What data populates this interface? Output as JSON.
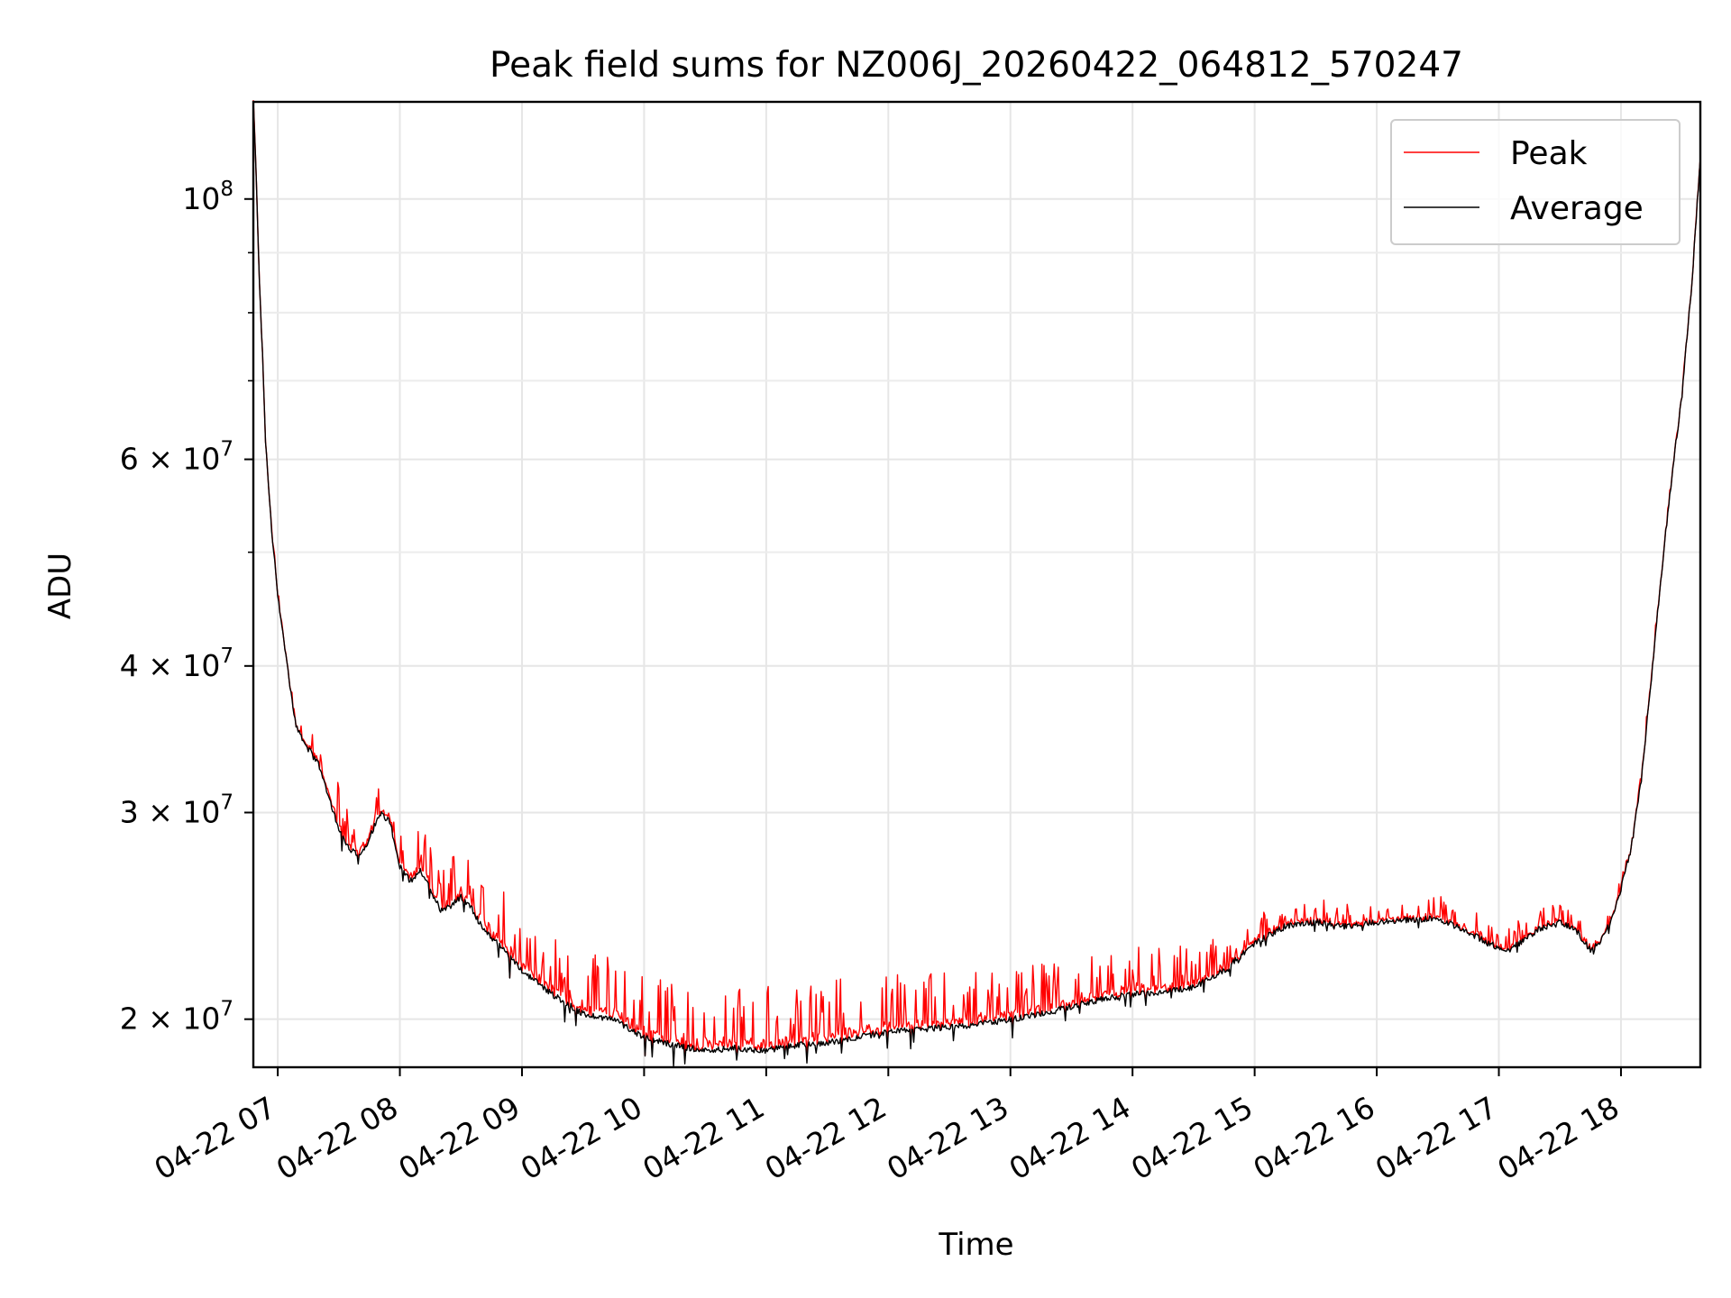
{
  "chart_data": {
    "type": "line",
    "title": "Peak field sums for NZ006J_20260422_064812_570247",
    "xlabel": "Time",
    "ylabel": "ADU",
    "y_scale": "log",
    "ylim": [
      18200000,
      121000000
    ],
    "xlim": [
      "2026-04-22 06:48",
      "2026-04-22 18:39"
    ],
    "grid": true,
    "legend_position": "top-right",
    "x_tick_labels": [
      "04-22 07",
      "04-22 08",
      "04-22 09",
      "04-22 10",
      "04-22 11",
      "04-22 12",
      "04-22 13",
      "04-22 14",
      "04-22 15",
      "04-22 16",
      "04-22 17",
      "04-22 18"
    ],
    "x_tick_times": [
      "2026-04-22 07:00",
      "2026-04-22 08:00",
      "2026-04-22 09:00",
      "2026-04-22 10:00",
      "2026-04-22 11:00",
      "2026-04-22 12:00",
      "2026-04-22 13:00",
      "2026-04-22 14:00",
      "2026-04-22 15:00",
      "2026-04-22 16:00",
      "2026-04-22 17:00",
      "2026-04-22 18:00"
    ],
    "y_ticks_major": [
      {
        "value": 20000000,
        "label": "2 × 10",
        "exp": "7"
      },
      {
        "value": 30000000,
        "label": "3 × 10",
        "exp": "7"
      },
      {
        "value": 40000000,
        "label": "4 × 10",
        "exp": "7"
      },
      {
        "value": 60000000,
        "label": "6 × 10",
        "exp": "7"
      },
      {
        "value": 100000000,
        "label": "10",
        "exp": "8"
      }
    ],
    "y_ticks_minor": [
      50000000,
      70000000,
      80000000,
      90000000
    ],
    "series": [
      {
        "name": "Peak",
        "color": "#ff0000"
      },
      {
        "name": "Average",
        "color": "#000000"
      }
    ],
    "average_points": [
      [
        "2026-04-22 06:48",
        121000000
      ],
      [
        "2026-04-22 06:51",
        85000000
      ],
      [
        "2026-04-22 06:54",
        62000000
      ],
      [
        "2026-04-22 06:57",
        52000000
      ],
      [
        "2026-04-22 07:00",
        46000000
      ],
      [
        "2026-04-22 07:03",
        42000000
      ],
      [
        "2026-04-22 07:06",
        38500000
      ],
      [
        "2026-04-22 07:09",
        35500000
      ],
      [
        "2026-04-22 07:15",
        34000000
      ],
      [
        "2026-04-22 07:20",
        33000000
      ],
      [
        "2026-04-22 07:25",
        31000000
      ],
      [
        "2026-04-22 07:30",
        29000000
      ],
      [
        "2026-04-22 07:35",
        28000000
      ],
      [
        "2026-04-22 07:40",
        27500000
      ],
      [
        "2026-04-22 07:45",
        28500000
      ],
      [
        "2026-04-22 07:50",
        30000000
      ],
      [
        "2026-04-22 07:55",
        29500000
      ],
      [
        "2026-04-22 08:00",
        27000000
      ],
      [
        "2026-04-22 08:05",
        26200000
      ],
      [
        "2026-04-22 08:10",
        26800000
      ],
      [
        "2026-04-22 08:15",
        25800000
      ],
      [
        "2026-04-22 08:20",
        24800000
      ],
      [
        "2026-04-22 08:25",
        25000000
      ],
      [
        "2026-04-22 08:30",
        25400000
      ],
      [
        "2026-04-22 08:35",
        24900000
      ],
      [
        "2026-04-22 08:40",
        24000000
      ],
      [
        "2026-04-22 08:50",
        23000000
      ],
      [
        "2026-04-22 09:00",
        22000000
      ],
      [
        "2026-04-22 09:15",
        21000000
      ],
      [
        "2026-04-22 09:30",
        20200000
      ],
      [
        "2026-04-22 09:45",
        20000000
      ],
      [
        "2026-04-22 10:00",
        19300000
      ],
      [
        "2026-04-22 10:15",
        19000000
      ],
      [
        "2026-04-22 10:30",
        18800000
      ],
      [
        "2026-04-22 10:45",
        18900000
      ],
      [
        "2026-04-22 11:00",
        18800000
      ],
      [
        "2026-04-22 11:15",
        19000000
      ],
      [
        "2026-04-22 11:30",
        19100000
      ],
      [
        "2026-04-22 11:45",
        19300000
      ],
      [
        "2026-04-22 12:00",
        19500000
      ],
      [
        "2026-04-22 12:15",
        19600000
      ],
      [
        "2026-04-22 12:30",
        19700000
      ],
      [
        "2026-04-22 12:45",
        19800000
      ],
      [
        "2026-04-22 13:00",
        20000000
      ],
      [
        "2026-04-22 13:15",
        20200000
      ],
      [
        "2026-04-22 13:30",
        20500000
      ],
      [
        "2026-04-22 13:45",
        20800000
      ],
      [
        "2026-04-22 14:00",
        21000000
      ],
      [
        "2026-04-22 14:15",
        21100000
      ],
      [
        "2026-04-22 14:30",
        21300000
      ],
      [
        "2026-04-22 14:45",
        22000000
      ],
      [
        "2026-04-22 15:00",
        23200000
      ],
      [
        "2026-04-22 15:15",
        24000000
      ],
      [
        "2026-04-22 15:30",
        24200000
      ],
      [
        "2026-04-22 15:45",
        24000000
      ],
      [
        "2026-04-22 16:00",
        24200000
      ],
      [
        "2026-04-22 16:15",
        24300000
      ],
      [
        "2026-04-22 16:30",
        24400000
      ],
      [
        "2026-04-22 16:45",
        23700000
      ],
      [
        "2026-04-22 17:00",
        23000000
      ],
      [
        "2026-04-22 17:05",
        22900000
      ],
      [
        "2026-04-22 17:10",
        23200000
      ],
      [
        "2026-04-22 17:20",
        23900000
      ],
      [
        "2026-04-22 17:30",
        24200000
      ],
      [
        "2026-04-22 17:38",
        23800000
      ],
      [
        "2026-04-22 17:45",
        22900000
      ],
      [
        "2026-04-22 17:50",
        23300000
      ],
      [
        "2026-04-22 17:55",
        24200000
      ],
      [
        "2026-04-22 18:00",
        25800000
      ],
      [
        "2026-04-22 18:05",
        28000000
      ],
      [
        "2026-04-22 18:10",
        32000000
      ],
      [
        "2026-04-22 18:15",
        39000000
      ],
      [
        "2026-04-22 18:20",
        48000000
      ],
      [
        "2026-04-22 18:25",
        58000000
      ],
      [
        "2026-04-22 18:30",
        68000000
      ],
      [
        "2026-04-22 18:35",
        85000000
      ],
      [
        "2026-04-22 18:39",
        108000000
      ]
    ],
    "peak_spread_points": [
      [
        "2026-04-22 06:48",
        0.005
      ],
      [
        "2026-04-22 07:10",
        0.01
      ],
      [
        "2026-04-22 07:30",
        0.06
      ],
      [
        "2026-04-22 08:00",
        0.05
      ],
      [
        "2026-04-22 08:30",
        0.08
      ],
      [
        "2026-04-22 09:00",
        0.08
      ],
      [
        "2026-04-22 10:00",
        0.09
      ],
      [
        "2026-04-22 11:00",
        0.09
      ],
      [
        "2026-04-22 12:00",
        0.08
      ],
      [
        "2026-04-22 13:00",
        0.07
      ],
      [
        "2026-04-22 14:00",
        0.07
      ],
      [
        "2026-04-22 15:00",
        0.04
      ],
      [
        "2026-04-22 16:00",
        0.03
      ],
      [
        "2026-04-22 17:00",
        0.03
      ],
      [
        "2026-04-22 18:00",
        0.02
      ],
      [
        "2026-04-22 18:39",
        0.005
      ]
    ]
  }
}
